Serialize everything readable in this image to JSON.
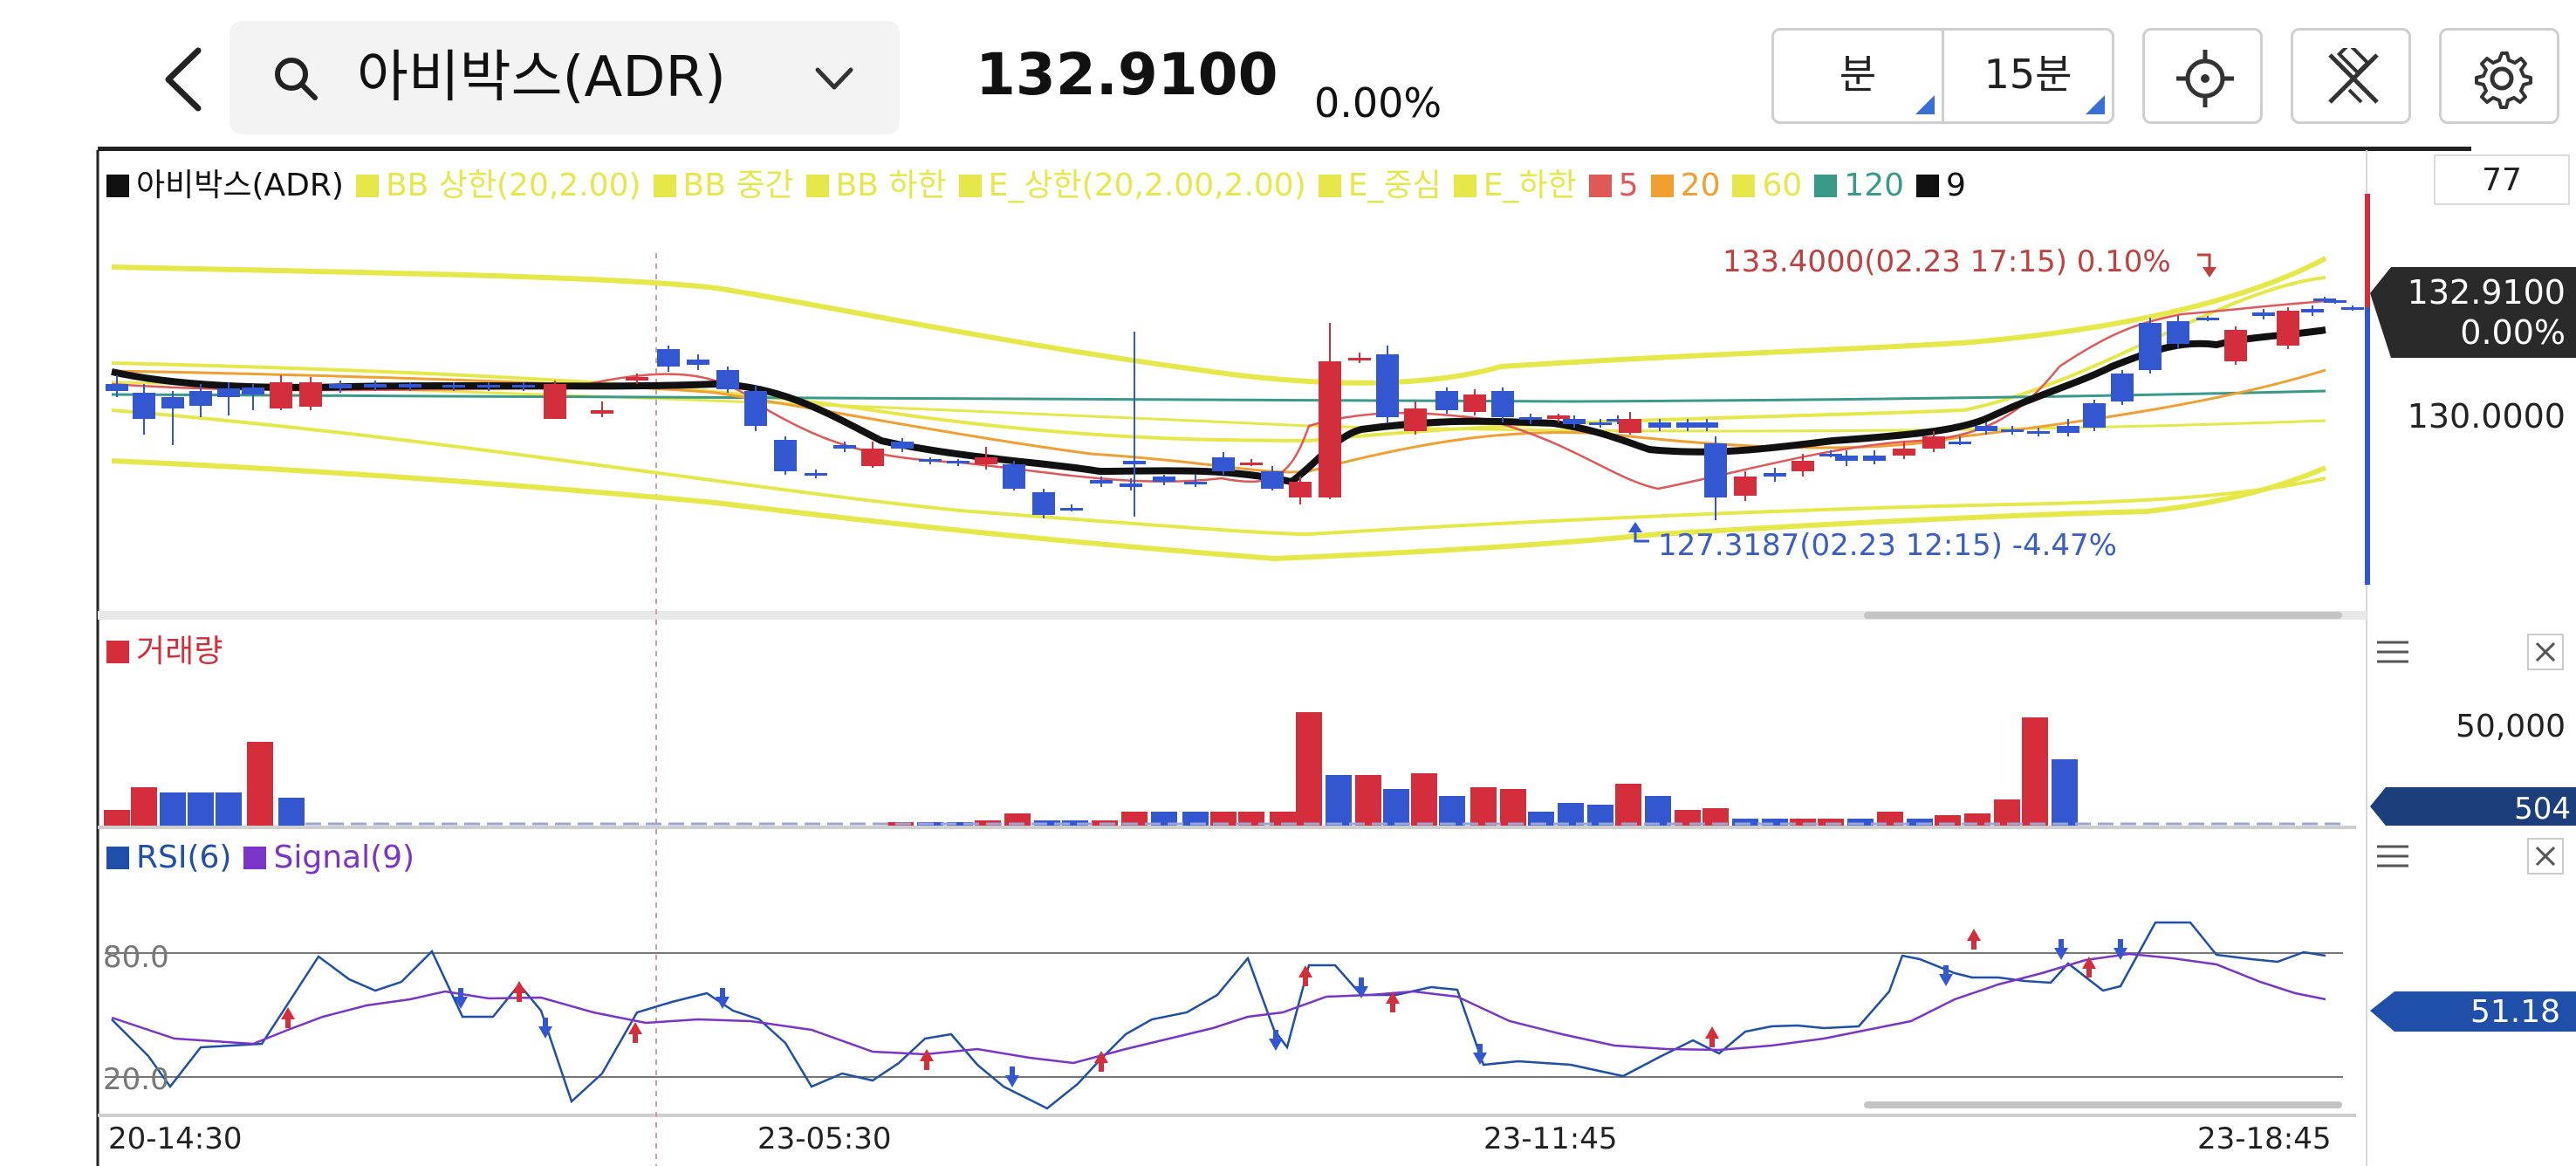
{
  "header": {
    "back_icon": "chevron-left-icon",
    "search_icon": "search-icon",
    "symbol_name": "아비박스(ADR)",
    "dropdown_icon": "chevron-down-icon",
    "price": "132.9100",
    "change_pct": "0.00%",
    "period_unit": "분",
    "period_value": "15분",
    "tool_icons": [
      "crosshair-icon",
      "drawing-tools-icon",
      "settings-icon"
    ]
  },
  "main_chart": {
    "legend": [
      {
        "label": "아비박스(ADR)",
        "color": "#111111"
      },
      {
        "label": "BB 상한(20,2.00)",
        "color": "#e6e84a"
      },
      {
        "label": "BB 중간",
        "color": "#e6e84a"
      },
      {
        "label": "BB 하한",
        "color": "#e6e84a"
      },
      {
        "label": "E_상한(20,2.00,2.00)",
        "color": "#e6e84a"
      },
      {
        "label": "E_중심",
        "color": "#e6e84a"
      },
      {
        "label": "E_하한",
        "color": "#e6e84a"
      },
      {
        "label": "5",
        "color": "#e05858"
      },
      {
        "label": "20",
        "color": "#f0a030"
      },
      {
        "label": "60",
        "color": "#e6e84a"
      },
      {
        "label": "120",
        "color": "#3a9a8a"
      },
      {
        "label": "9",
        "color": "#111111"
      }
    ],
    "top_value": "77",
    "current_price_badge": "132.9100",
    "current_change_badge": "0.00%",
    "y_tick": "130.0000",
    "high_annotation": "133.4000(02.23 17:15) 0.10%",
    "low_annotation": "127.3187(02.23 12:15) -4.47%"
  },
  "volume_panel": {
    "legend": "거래량",
    "legend_color": "#d42e3c",
    "y_tick": "50,000",
    "current_badge": "504",
    "menu_icon": "hamburger-menu-icon",
    "close_icon": "close-icon"
  },
  "rsi_panel": {
    "legend_rsi": "RSI(6)",
    "legend_signal": "Signal(9)",
    "rsi_color": "#1f4fa8",
    "signal_color": "#7a35c8",
    "level_high": "80.0",
    "level_low": "20.0",
    "current_badge": "51.18",
    "menu_icon": "hamburger-menu-icon",
    "close_icon": "close-icon"
  },
  "x_axis": {
    "labels": [
      "20-14:30",
      "23-05:30",
      "23-11:45",
      "23-18:45"
    ]
  },
  "colors": {
    "up": "#d42e3c",
    "down": "#3257d0",
    "bollinger": "#e6e84a",
    "badge_dark": "#2a2a2a",
    "badge_blue": "#1f4fa8"
  }
}
